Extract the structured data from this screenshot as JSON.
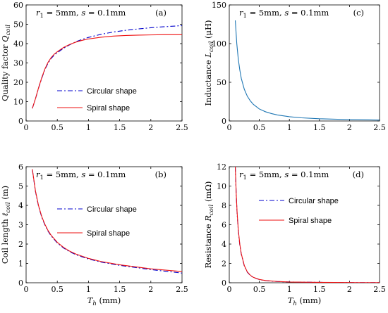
{
  "chart_data": [
    {
      "id": "a",
      "type": "line",
      "panel_label": "(a)",
      "annotation": "r1 = 5mm, s = 0.1mm",
      "xlabel": "",
      "ylabel": "Quality factor Qcoil",
      "xlim": [
        0,
        2.5
      ],
      "ylim": [
        0,
        60
      ],
      "xticks": [
        0,
        0.5,
        1,
        1.5,
        2,
        2.5
      ],
      "xtick_labels": [
        "0",
        "0.5",
        "1",
        "1.5",
        "2",
        "2.5"
      ],
      "yticks": [
        0,
        10,
        20,
        30,
        40,
        50,
        60
      ],
      "ytick_labels": [
        "0",
        "10",
        "20",
        "30",
        "40",
        "50",
        "60"
      ],
      "legend": {
        "placement": "center-bottom",
        "has_border": false
      },
      "series": [
        {
          "name": "Circular shape",
          "color": "#0000cc",
          "style": "dashdot",
          "x": [
            0.1,
            0.15,
            0.2,
            0.25,
            0.3,
            0.35,
            0.4,
            0.45,
            0.5,
            0.6,
            0.7,
            0.8,
            0.9,
            1.0,
            1.2,
            1.4,
            1.6,
            1.8,
            2.0,
            2.2,
            2.4,
            2.5
          ],
          "y": [
            6.5,
            11.5,
            17,
            22,
            26.5,
            29.8,
            32.3,
            34.0,
            35.3,
            37.6,
            39.4,
            41.0,
            42.2,
            43.2,
            44.8,
            46.0,
            46.9,
            47.6,
            48.2,
            48.7,
            49.1,
            49.3
          ]
        },
        {
          "name": "Spiral shape",
          "color": "#ee1111",
          "style": "solid",
          "x": [
            0.1,
            0.15,
            0.2,
            0.25,
            0.3,
            0.35,
            0.4,
            0.45,
            0.5,
            0.6,
            0.7,
            0.8,
            0.9,
            1.0,
            1.2,
            1.4,
            1.6,
            1.8,
            2.0,
            2.2,
            2.4,
            2.5
          ],
          "y": [
            6.5,
            11.5,
            17.2,
            22.3,
            26.8,
            30.2,
            32.7,
            34.5,
            35.8,
            38.0,
            39.6,
            40.8,
            41.7,
            42.4,
            43.3,
            43.9,
            44.2,
            44.4,
            44.5,
            44.6,
            44.6,
            44.6
          ]
        }
      ]
    },
    {
      "id": "c",
      "type": "line",
      "panel_label": "(c)",
      "annotation": "r1 = 5mm, s = 0.1mm",
      "xlabel": "",
      "ylabel": "Inductance Lcoil (μH)",
      "xlim": [
        0,
        2.5
      ],
      "ylim": [
        0,
        150
      ],
      "xticks": [
        0,
        0.5,
        1,
        1.5,
        2,
        2.5
      ],
      "xtick_labels": [
        "0",
        "0.5",
        "1",
        "1.5",
        "2",
        "2.5"
      ],
      "yticks": [
        0,
        50,
        100,
        150
      ],
      "ytick_labels": [
        "0",
        "50",
        "100",
        "150"
      ],
      "series": [
        {
          "color": "#1f77b4",
          "style": "solid",
          "x": [
            0.1,
            0.125,
            0.15,
            0.175,
            0.2,
            0.25,
            0.3,
            0.35,
            0.4,
            0.5,
            0.6,
            0.7,
            0.8,
            1.0,
            1.2,
            1.5,
            2.0,
            2.5
          ],
          "y": [
            130,
            100,
            80,
            66,
            55,
            41,
            32,
            26,
            21.5,
            15.5,
            12,
            9.6,
            7.8,
            5.5,
            4.1,
            2.9,
            1.8,
            1.2
          ]
        }
      ]
    },
    {
      "id": "b",
      "type": "line",
      "panel_label": "(b)",
      "annotation": "r1 = 5mm, s = 0.1mm",
      "xlabel": "Th (mm)",
      "ylabel": "Coil length ℓcoil (m)",
      "xlim": [
        0,
        2.5
      ],
      "ylim": [
        0,
        6
      ],
      "xticks": [
        0,
        0.5,
        1,
        1.5,
        2,
        2.5
      ],
      "xtick_labels": [
        "0",
        "0.5",
        "1",
        "1.5",
        "2",
        "2.5"
      ],
      "yticks": [
        0,
        1,
        2,
        3,
        4,
        5,
        6
      ],
      "ytick_labels": [
        "0",
        "1",
        "2",
        "3",
        "4",
        "5",
        "6"
      ],
      "legend": {
        "placement": "right-middle",
        "has_border": false
      },
      "series": [
        {
          "name": "Circular shape",
          "color": "#0000cc",
          "style": "dashdot",
          "x": [
            0.1,
            0.15,
            0.2,
            0.25,
            0.3,
            0.35,
            0.4,
            0.5,
            0.6,
            0.7,
            0.8,
            1.0,
            1.2,
            1.5,
            2.0,
            2.5
          ],
          "y": [
            5.85,
            4.72,
            3.95,
            3.4,
            3.0,
            2.68,
            2.43,
            2.06,
            1.8,
            1.6,
            1.45,
            1.23,
            1.07,
            0.9,
            0.68,
            0.5
          ]
        },
        {
          "name": "Spiral shape",
          "color": "#ee1111",
          "style": "solid",
          "x": [
            0.1,
            0.15,
            0.2,
            0.25,
            0.3,
            0.35,
            0.4,
            0.5,
            0.6,
            0.7,
            0.8,
            1.0,
            1.2,
            1.5,
            2.0,
            2.5
          ],
          "y": [
            5.87,
            4.75,
            3.98,
            3.43,
            3.03,
            2.71,
            2.46,
            2.09,
            1.83,
            1.63,
            1.48,
            1.26,
            1.1,
            0.93,
            0.72,
            0.58
          ]
        }
      ]
    },
    {
      "id": "d",
      "type": "line",
      "panel_label": "(d)",
      "annotation": "r1 = 5mm, s = 0.1mm",
      "xlabel": "Th (mm)",
      "ylabel": "Resistance Rcoil (mΩ)",
      "xlim": [
        0,
        2.5
      ],
      "ylim": [
        0,
        12
      ],
      "xticks": [
        0,
        0.5,
        1,
        1.5,
        2,
        2.5
      ],
      "xtick_labels": [
        "0",
        "0.5",
        "1",
        "1.5",
        "2",
        "2.5"
      ],
      "yticks": [
        0,
        2,
        4,
        6,
        8,
        10,
        12
      ],
      "ytick_labels": [
        "0",
        "2",
        "4",
        "6",
        "8",
        "10",
        "12"
      ],
      "legend": {
        "placement": "center",
        "has_border": false
      },
      "series": [
        {
          "name": "Circular shape",
          "color": "#0000cc",
          "style": "dashdot",
          "x": [
            0.1,
            0.115,
            0.13,
            0.15,
            0.175,
            0.2,
            0.25,
            0.3,
            0.35,
            0.4,
            0.5,
            0.6,
            0.8,
            1.0,
            1.5,
            2.0,
            2.5
          ],
          "y": [
            12,
            9.2,
            7.2,
            5.4,
            3.9,
            2.95,
            1.75,
            1.1,
            0.76,
            0.55,
            0.33,
            0.22,
            0.12,
            0.08,
            0.04,
            0.02,
            0.01
          ]
        },
        {
          "name": "Spiral shape",
          "color": "#ee1111",
          "style": "solid",
          "x": [
            0.1,
            0.115,
            0.13,
            0.15,
            0.175,
            0.2,
            0.25,
            0.3,
            0.35,
            0.4,
            0.5,
            0.6,
            0.8,
            1.0,
            1.5,
            2.0,
            2.5
          ],
          "y": [
            12,
            9.3,
            7.3,
            5.5,
            4.0,
            3.0,
            1.78,
            1.12,
            0.78,
            0.56,
            0.34,
            0.23,
            0.13,
            0.08,
            0.04,
            0.02,
            0.01
          ]
        }
      ]
    }
  ]
}
